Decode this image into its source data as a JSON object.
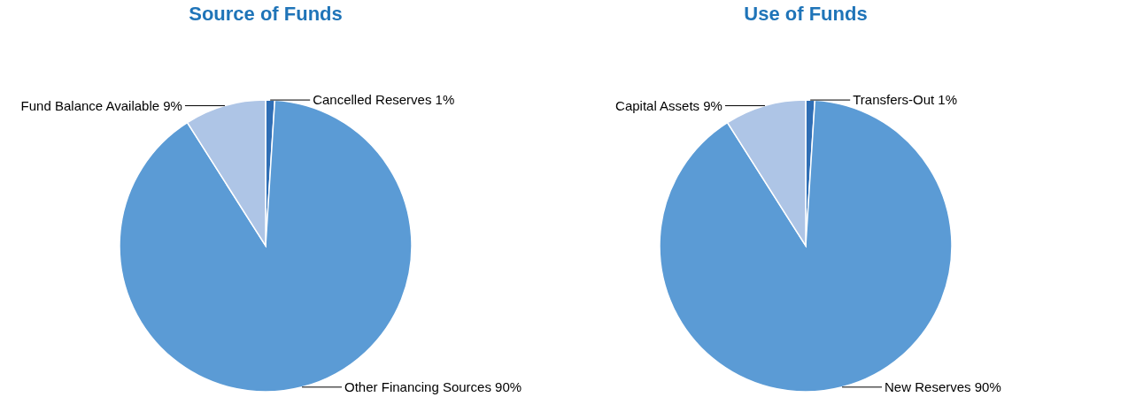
{
  "chart_data": [
    {
      "type": "pie",
      "title": "Source of Funds",
      "categories": [
        "Cancelled Reserves",
        "Other Financing Sources",
        "Fund Balance Available"
      ],
      "values": [
        1,
        90,
        9
      ],
      "colors": [
        "#2f6eb5",
        "#5b9bd5",
        "#aec5e6"
      ],
      "value_labels": [
        "1%",
        "90%",
        "9%"
      ],
      "legend": false
    },
    {
      "type": "pie",
      "title": "Use of Funds",
      "categories": [
        "Transfers-Out",
        "New Reserves",
        "Capital Assets"
      ],
      "values": [
        1,
        90,
        9
      ],
      "colors": [
        "#2f6eb5",
        "#5b9bd5",
        "#aec5e6"
      ],
      "value_labels": [
        "1%",
        "90%",
        "9%"
      ],
      "legend": false
    }
  ]
}
